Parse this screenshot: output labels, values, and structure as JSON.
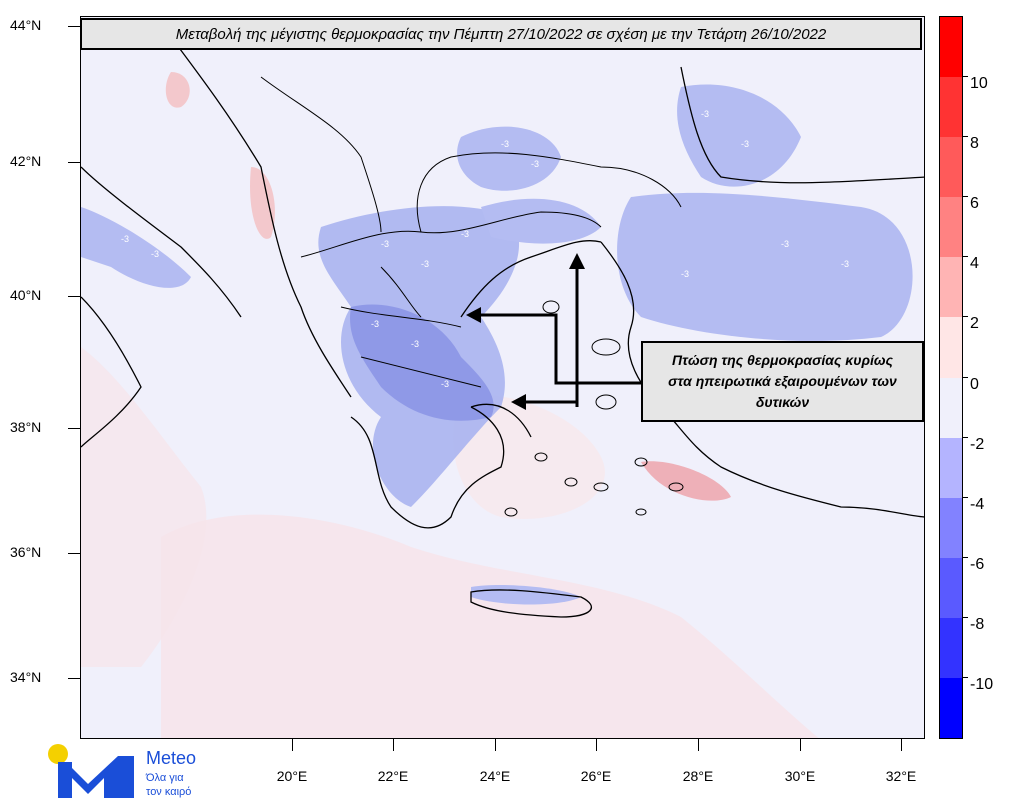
{
  "title": "Μεταβολή της μέγιστης θερμοκρασίας την Πέμπτη 27/10/2022 σε σχέση με την Τετάρτη 26/10/2022",
  "annotation": {
    "line1": "Πτώση της θερμοκρασίας κυρίως",
    "line2": "στα ηπειρωτικά εξαιρουμένων των",
    "line3": "δυτικών"
  },
  "axes": {
    "lat_labels": [
      "44°N",
      "42°N",
      "40°N",
      "38°N",
      "36°N",
      "34°N"
    ],
    "lon_labels": [
      "20°E",
      "22°E",
      "24°E",
      "26°E",
      "28°E",
      "30°E",
      "32°E"
    ]
  },
  "colorbar": {
    "labels": [
      "10",
      "8",
      "6",
      "4",
      "2",
      "0",
      "-2",
      "-4",
      "-6",
      "-8",
      "-10"
    ],
    "colors": [
      "#ff0000",
      "#ff3333",
      "#ff5a5a",
      "#ff8282",
      "#ffb4b4",
      "#ffe6e6",
      "#f0f0fb",
      "#b4b4ff",
      "#8282ff",
      "#5a5aff",
      "#3333ff",
      "#0000ff"
    ]
  },
  "contour_label": "-3",
  "logo": {
    "brand": "Meteo",
    "tagline1": "Όλα για",
    "tagline2": "τον καιρό"
  },
  "map_colors": {
    "background": "#f0f0fb",
    "warm": "#f8d4d4",
    "warm_light": "#fbeaea",
    "cool": "#aab4f0",
    "cool_dark": "#8c96e6"
  }
}
